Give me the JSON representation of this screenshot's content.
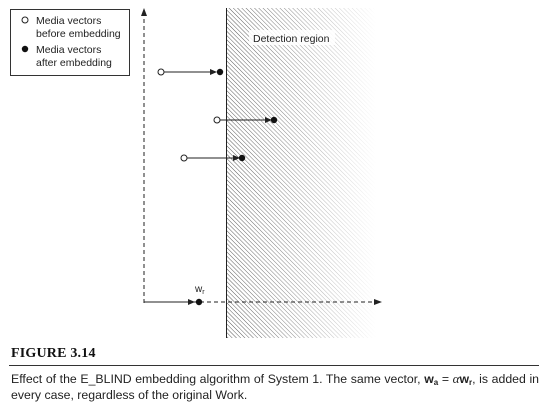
{
  "legend": {
    "before_line1": "Media vectors",
    "before_line2": "before embedding",
    "after_line1": "Media vectors",
    "after_line2": "after embedding"
  },
  "region_label": "Detection region",
  "reference_label": "w",
  "reference_subscript": "r",
  "figure_label": "FIGURE 3.14",
  "caption": {
    "part1": "Effect of the E_BLIND embedding algorithm of System 1. The same vector, ",
    "wa_symbol": "w",
    "wa_subscript": "a",
    "equals": " = ",
    "alpha": "α",
    "wr_symbol": "w",
    "wr_subscript": "r",
    "part2": ", is added in every case, regardless of the original Work."
  },
  "colors": {
    "ink": "#111111",
    "hatch": "#555555"
  }
}
